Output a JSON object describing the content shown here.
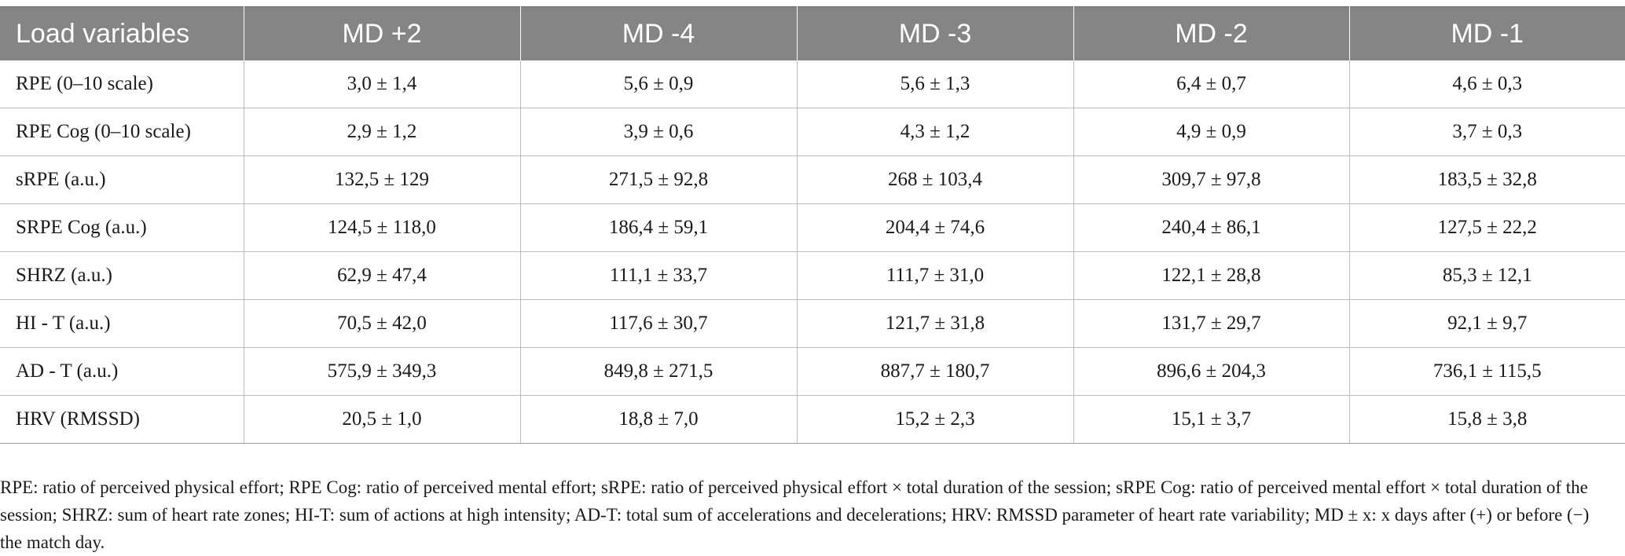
{
  "table": {
    "headers": [
      "Load variables",
      "MD +2",
      "MD -4",
      "MD -3",
      "MD -2",
      "MD -1"
    ],
    "rows": [
      [
        "RPE (0–10 scale)",
        "3,0 ± 1,4",
        "5,6 ± 0,9",
        "5,6 ± 1,3",
        "6,4 ± 0,7",
        "4,6 ± 0,3"
      ],
      [
        "RPE Cog (0–10 scale)",
        "2,9 ± 1,2",
        "3,9 ± 0,6",
        "4,3 ± 1,2",
        "4,9 ± 0,9",
        "3,7 ± 0,3"
      ],
      [
        "sRPE (a.u.)",
        "132,5 ± 129",
        "271,5 ± 92,8",
        "268 ± 103,4",
        "309,7 ± 97,8",
        "183,5 ± 32,8"
      ],
      [
        "SRPE Cog (a.u.)",
        "124,5 ± 118,0",
        "186,4 ± 59,1",
        "204,4 ± 74,6",
        "240,4 ± 86,1",
        "127,5 ± 22,2"
      ],
      [
        "SHRZ (a.u.)",
        "62,9 ± 47,4",
        "111,1 ± 33,7",
        "111,7 ± 31,0",
        "122,1 ± 28,8",
        "85,3 ± 12,1"
      ],
      [
        "HI - T (a.u.)",
        "70,5 ± 42,0",
        "117,6 ± 30,7",
        "121,7 ± 31,8",
        "131,7 ± 29,7",
        "92,1 ± 9,7"
      ],
      [
        "AD - T (a.u.)",
        "575,9 ± 349,3",
        "849,8 ± 271,5",
        "887,7 ± 180,7",
        "896,6 ± 204,3",
        "736,1 ± 115,5"
      ],
      [
        "HRV (RMSSD)",
        "20,5 ± 1,0",
        "18,8 ± 7,0",
        "15,2 ± 2,3",
        "15,1 ± 3,7",
        "15,8 ± 3,8"
      ]
    ]
  },
  "footnote": "RPE: ratio of perceived physical effort; RPE Cog: ratio of perceived mental effort; sRPE: ratio of perceived physical effort × total duration of the session; sRPE Cog: ratio of perceived mental effort × total duration of the session; SHRZ: sum of heart rate zones; HI-T: sum of actions at high intensity; AD-T: total sum of accelerations and decelerations; HRV: RMSSD parameter of heart rate variability; MD ± x: x days after (+) or before (−) the match day.",
  "colors": {
    "header_bg": "#858585",
    "header_text": "#ffffff",
    "grid_line": "#bdbdbd"
  }
}
